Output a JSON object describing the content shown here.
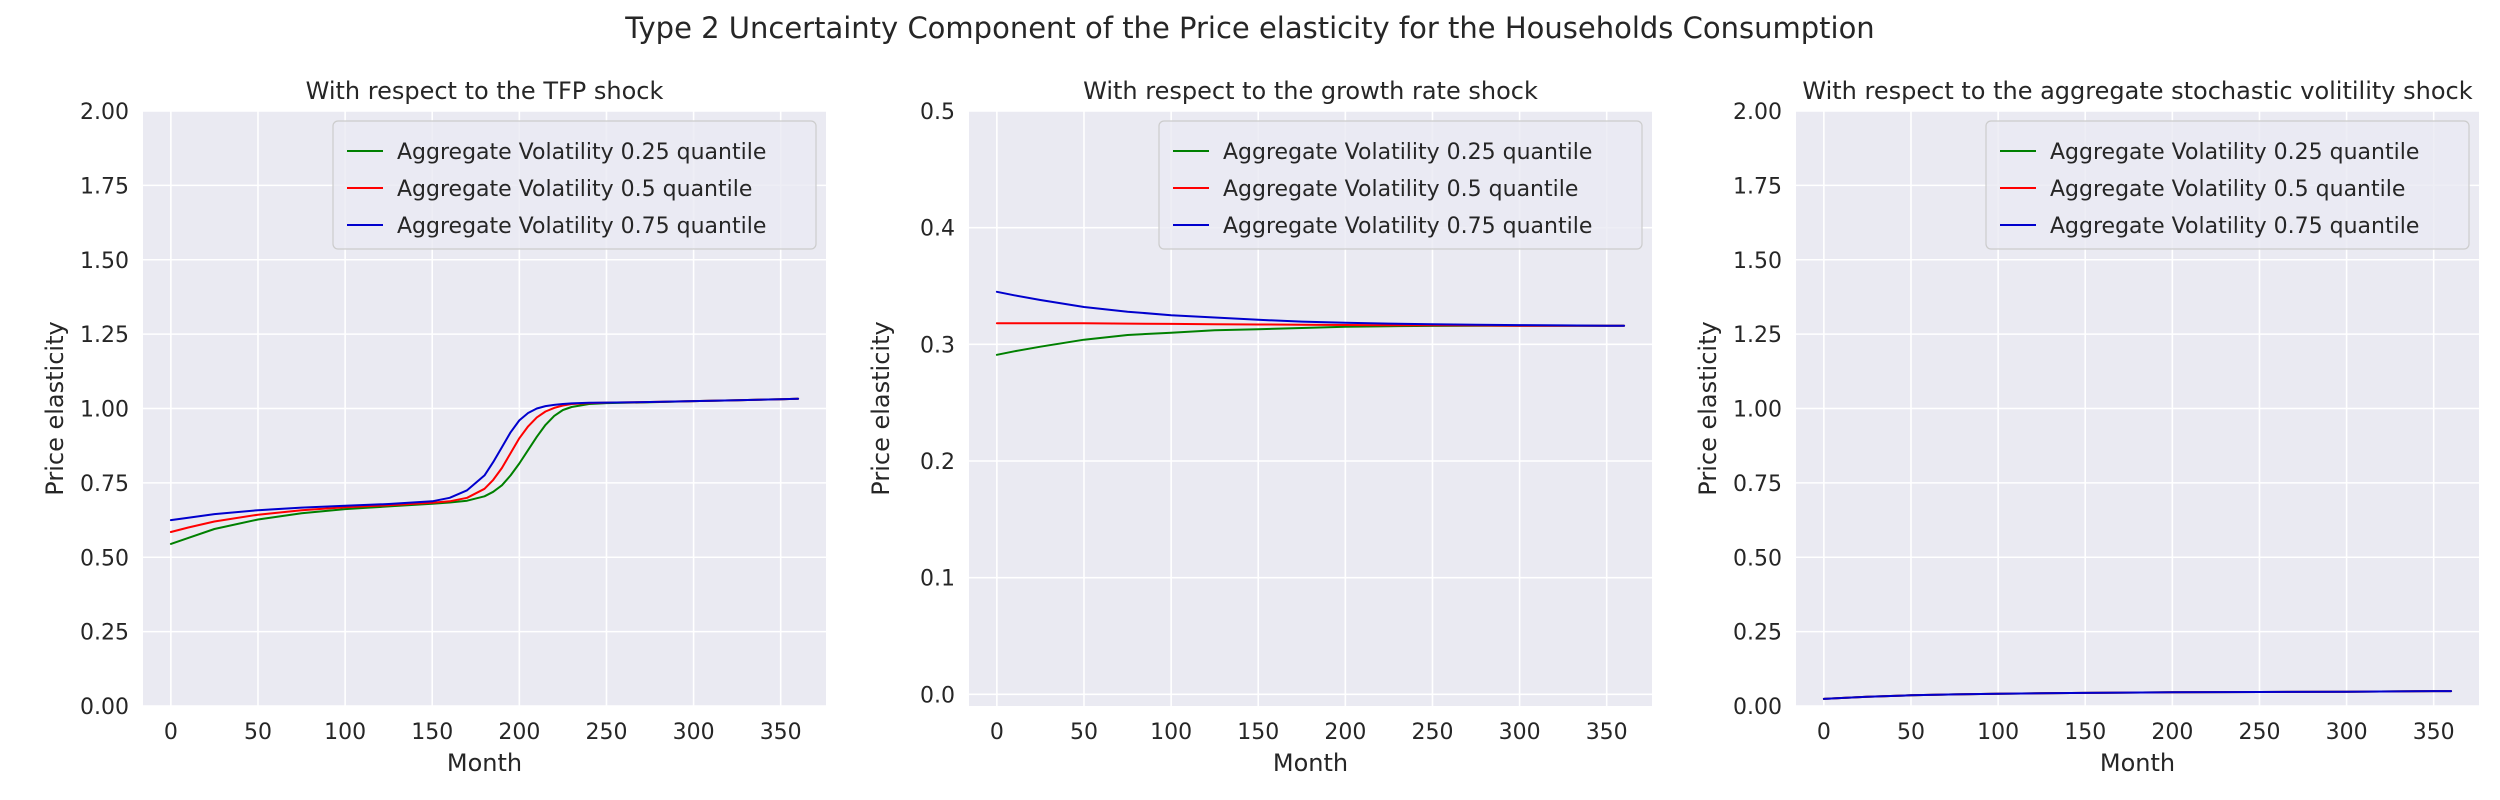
{
  "figure": {
    "title": "Type 2 Uncertainty Component of the Price elasticity for the Households Consumption"
  },
  "chart_data": [
    {
      "type": "line",
      "title": "With respect to the TFP shock",
      "xlabel": "Month",
      "ylabel": "Price elasticity",
      "xlim": [
        -16,
        376
      ],
      "ylim": [
        0,
        2
      ],
      "xticks": [
        0,
        50,
        100,
        150,
        200,
        250,
        300,
        350
      ],
      "yticks": [
        0,
        0.25,
        0.5,
        0.75,
        1.0,
        1.25,
        1.5,
        1.75,
        2.0
      ],
      "ytick_labels": [
        "0.00",
        "0.25",
        "0.50",
        "0.75",
        "1.00",
        "1.25",
        "1.50",
        "1.75",
        "2.00"
      ],
      "grid": true,
      "legend": "top-right",
      "x": [
        0,
        10,
        25,
        50,
        75,
        100,
        125,
        150,
        160,
        170,
        180,
        185,
        190,
        195,
        200,
        205,
        210,
        215,
        220,
        225,
        230,
        240,
        250,
        275,
        300,
        325,
        350,
        360
      ],
      "series": [
        {
          "name": "Aggregate Volatility 0.25 quantile",
          "color": "#008000",
          "values": [
            0.545,
            0.565,
            0.595,
            0.627,
            0.648,
            0.662,
            0.671,
            0.68,
            0.684,
            0.69,
            0.705,
            0.72,
            0.742,
            0.775,
            0.815,
            0.86,
            0.905,
            0.945,
            0.975,
            0.995,
            1.005,
            1.015,
            1.018,
            1.021,
            1.025,
            1.028,
            1.031,
            1.033
          ]
        },
        {
          "name": "Aggregate Volatility 0.5 quantile",
          "color": "#ff0000",
          "values": [
            0.585,
            0.6,
            0.62,
            0.643,
            0.658,
            0.668,
            0.675,
            0.683,
            0.688,
            0.7,
            0.73,
            0.76,
            0.8,
            0.85,
            0.9,
            0.94,
            0.97,
            0.99,
            1.002,
            1.01,
            1.015,
            1.018,
            1.02,
            1.022,
            1.025,
            1.028,
            1.031,
            1.033
          ]
        },
        {
          "name": "Aggregate Volatility 0.75 quantile",
          "color": "#0000cd",
          "values": [
            0.625,
            0.633,
            0.645,
            0.658,
            0.667,
            0.673,
            0.679,
            0.688,
            0.7,
            0.725,
            0.775,
            0.82,
            0.87,
            0.92,
            0.96,
            0.985,
            1.0,
            1.008,
            1.012,
            1.015,
            1.017,
            1.019,
            1.02,
            1.022,
            1.025,
            1.028,
            1.031,
            1.033
          ]
        }
      ]
    },
    {
      "type": "line",
      "title": "With respect to the growth rate shock",
      "xlabel": "Month",
      "ylabel": "Price elasticity",
      "xlim": [
        -16,
        376
      ],
      "ylim": [
        -0.01,
        0.5
      ],
      "xticks": [
        0,
        50,
        100,
        150,
        200,
        250,
        300,
        350
      ],
      "yticks": [
        0.0,
        0.1,
        0.2,
        0.3,
        0.4,
        0.5
      ],
      "ytick_labels": [
        "0.0",
        "0.1",
        "0.2",
        "0.3",
        "0.4",
        "0.5"
      ],
      "grid": true,
      "legend": "top-right",
      "x": [
        0,
        10,
        25,
        50,
        75,
        100,
        125,
        150,
        175,
        200,
        225,
        250,
        275,
        300,
        325,
        350,
        360
      ],
      "series": [
        {
          "name": "Aggregate Volatility 0.25 quantile",
          "color": "#008000",
          "values": [
            0.291,
            0.294,
            0.298,
            0.304,
            0.308,
            0.31,
            0.312,
            0.313,
            0.314,
            0.315,
            0.3155,
            0.3158,
            0.316,
            0.316,
            0.316,
            0.316,
            0.316
          ]
        },
        {
          "name": "Aggregate Volatility 0.5 quantile",
          "color": "#ff0000",
          "values": [
            0.318,
            0.318,
            0.318,
            0.318,
            0.3178,
            0.3175,
            0.3172,
            0.317,
            0.3168,
            0.3166,
            0.3164,
            0.3163,
            0.3162,
            0.316,
            0.316,
            0.316,
            0.316
          ]
        },
        {
          "name": "Aggregate Volatility 0.75 quantile",
          "color": "#0000cd",
          "values": [
            0.345,
            0.342,
            0.338,
            0.332,
            0.328,
            0.325,
            0.323,
            0.321,
            0.3195,
            0.3185,
            0.3178,
            0.3172,
            0.3168,
            0.3165,
            0.3162,
            0.316,
            0.316
          ]
        }
      ]
    },
    {
      "type": "line",
      "title": "With respect to the aggregate stochastic volitility shock",
      "xlabel": "Month",
      "ylabel": "Price elasticity",
      "xlim": [
        -16,
        376
      ],
      "ylim": [
        0,
        2
      ],
      "xticks": [
        0,
        50,
        100,
        150,
        200,
        250,
        300,
        350
      ],
      "yticks": [
        0,
        0.25,
        0.5,
        0.75,
        1.0,
        1.25,
        1.5,
        1.75,
        2.0
      ],
      "ytick_labels": [
        "0.00",
        "0.25",
        "0.50",
        "0.75",
        "1.00",
        "1.25",
        "1.50",
        "1.75",
        "2.00"
      ],
      "grid": true,
      "legend": "top-right",
      "x": [
        0,
        10,
        25,
        50,
        75,
        100,
        125,
        150,
        200,
        250,
        300,
        350,
        360
      ],
      "series": [
        {
          "name": "Aggregate Volatility 0.25 quantile",
          "color": "#008000",
          "values": [
            0.024,
            0.027,
            0.031,
            0.036,
            0.039,
            0.041,
            0.043,
            0.044,
            0.046,
            0.047,
            0.048,
            0.05,
            0.05
          ]
        },
        {
          "name": "Aggregate Volatility 0.5 quantile",
          "color": "#ff0000",
          "values": [
            0.024,
            0.027,
            0.031,
            0.036,
            0.039,
            0.041,
            0.043,
            0.044,
            0.046,
            0.047,
            0.048,
            0.05,
            0.05
          ]
        },
        {
          "name": "Aggregate Volatility 0.75 quantile",
          "color": "#0000cd",
          "values": [
            0.024,
            0.027,
            0.031,
            0.036,
            0.039,
            0.041,
            0.043,
            0.044,
            0.046,
            0.047,
            0.048,
            0.05,
            0.05
          ]
        }
      ]
    }
  ]
}
